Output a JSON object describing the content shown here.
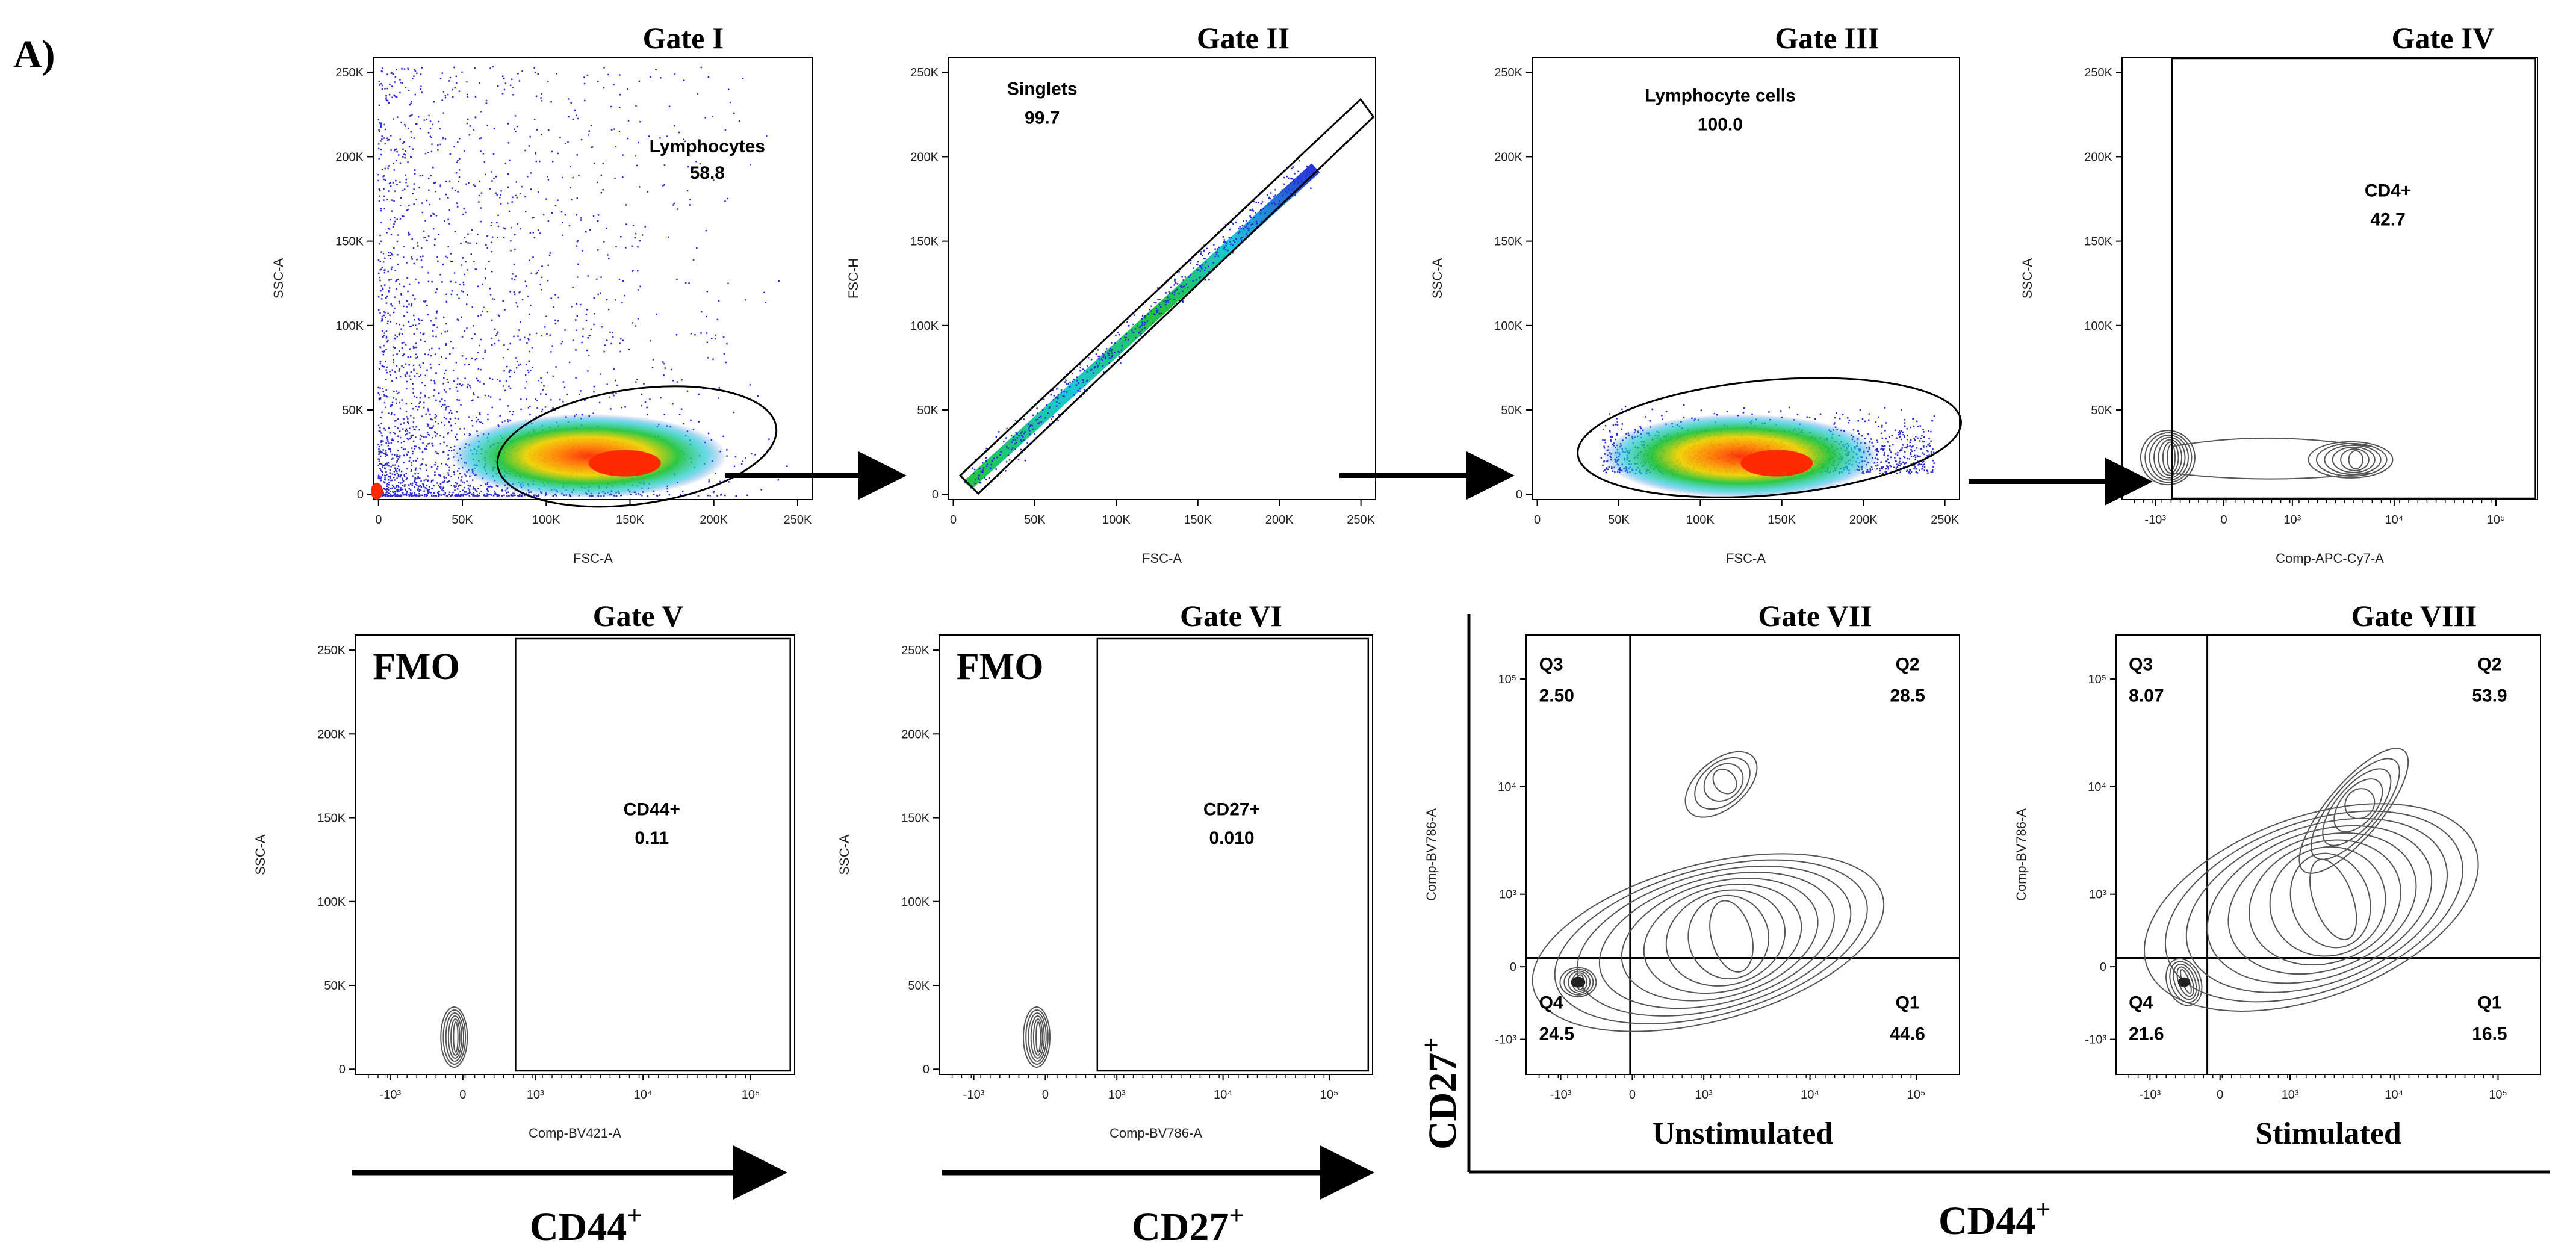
{
  "figure": {
    "panel_label": "A)",
    "bottom_arrow_labels": {
      "cd44_left": "CD44",
      "cd27_mid": "CD27",
      "cd44_right": "CD44",
      "cd27_vertical": "CD27",
      "superscript": "+"
    }
  },
  "chart_data": [
    {
      "id": "gate1",
      "type": "scatter",
      "title": "Gate I",
      "xlabel": "FSC-A",
      "ylabel": "SSC-A",
      "x_ticks": [
        "0",
        "50K",
        "100K",
        "150K",
        "200K",
        "250K"
      ],
      "y_ticks": [
        "0",
        "50K",
        "100K",
        "150K",
        "200K",
        "250K"
      ],
      "xlim": [
        0,
        262144
      ],
      "ylim": [
        0,
        262144
      ],
      "gate": {
        "name": "Lymphocytes",
        "value": "58.8",
        "shape": "ellipse"
      },
      "density_center": [
        150000,
        18000
      ]
    },
    {
      "id": "gate2",
      "type": "scatter",
      "title": "Gate II",
      "xlabel": "FSC-A",
      "ylabel": "FSC-H",
      "x_ticks": [
        "0",
        "50K",
        "100K",
        "150K",
        "200K",
        "250K"
      ],
      "y_ticks": [
        "0",
        "50K",
        "100K",
        "150K",
        "200K",
        "250K"
      ],
      "xlim": [
        0,
        262144
      ],
      "ylim": [
        0,
        262144
      ],
      "gate": {
        "name": "Singlets",
        "value": "99.7",
        "shape": "polygon"
      }
    },
    {
      "id": "gate3",
      "type": "scatter",
      "title": "Gate III",
      "xlabel": "FSC-A",
      "ylabel": "SSC-A",
      "x_ticks": [
        "0",
        "50K",
        "100K",
        "150K",
        "200K",
        "250K"
      ],
      "y_ticks": [
        "0",
        "50K",
        "100K",
        "150K",
        "200K",
        "250K"
      ],
      "xlim": [
        0,
        262144
      ],
      "ylim": [
        0,
        262144
      ],
      "gate": {
        "name": "Lymphocyte cells",
        "value": "100.0",
        "shape": "ellipse"
      },
      "density_center": [
        150000,
        18000
      ]
    },
    {
      "id": "gate4",
      "type": "contour",
      "title": "Gate IV",
      "xlabel": "Comp-APC-Cy7-A",
      "ylabel": "SSC-A",
      "x_ticks": [
        "-10^3",
        "0",
        "10^3",
        "10^4",
        "10^5"
      ],
      "y_ticks": [
        "0",
        "50K",
        "100K",
        "150K",
        "200K",
        "250K"
      ],
      "gate": {
        "name": "CD4+",
        "value": "42.7",
        "shape": "rectangle"
      }
    },
    {
      "id": "gate5",
      "type": "contour",
      "title": "Gate V",
      "xlabel": "Comp-BV421-A",
      "ylabel": "SSC-A",
      "annotation": "FMO",
      "x_ticks": [
        "-10^3",
        "0",
        "10^3",
        "10^4",
        "10^5"
      ],
      "y_ticks": [
        "0",
        "50K",
        "100K",
        "150K",
        "200K",
        "250K"
      ],
      "gate": {
        "name": "CD44+",
        "value": "0.11",
        "shape": "rectangle"
      }
    },
    {
      "id": "gate6",
      "type": "contour",
      "title": "Gate VI",
      "xlabel": "Comp-BV786-A",
      "ylabel": "SSC-A",
      "annotation": "FMO",
      "x_ticks": [
        "-10^3",
        "0",
        "10^3",
        "10^4",
        "10^5"
      ],
      "y_ticks": [
        "0",
        "50K",
        "100K",
        "150K",
        "200K",
        "250K"
      ],
      "gate": {
        "name": "CD27+",
        "value": "0.010",
        "shape": "rectangle"
      }
    },
    {
      "id": "gate7",
      "type": "contour",
      "title": "Gate VII",
      "xlabel": "Unstimulated",
      "ylabel": "Comp-BV786-A",
      "x_ticks": [
        "-10^3",
        "0",
        "10^3",
        "10^4",
        "10^5"
      ],
      "y_ticks": [
        "-10^3",
        "0",
        "10^3",
        "10^4",
        "10^5"
      ],
      "quadrants": [
        {
          "name": "Q3",
          "value": "2.50"
        },
        {
          "name": "Q2",
          "value": "28.5"
        },
        {
          "name": "Q4",
          "value": "24.5"
        },
        {
          "name": "Q1",
          "value": "44.6"
        }
      ]
    },
    {
      "id": "gate8",
      "type": "contour",
      "title": "Gate VIII",
      "xlabel": "Stimulated",
      "ylabel": "Comp-BV786-A",
      "x_ticks": [
        "-10^3",
        "0",
        "10^3",
        "10^4",
        "10^5"
      ],
      "y_ticks": [
        "-10^3",
        "0",
        "10^3",
        "10^4",
        "10^5"
      ],
      "quadrants": [
        {
          "name": "Q3",
          "value": "8.07"
        },
        {
          "name": "Q2",
          "value": "53.9"
        },
        {
          "name": "Q4",
          "value": "21.6"
        },
        {
          "name": "Q1",
          "value": "16.5"
        }
      ]
    }
  ],
  "colors": {
    "dots": "#2b2bd6",
    "density_hot": "#ff2a00",
    "density_mid": "#f0d000",
    "density_green": "#22c43a",
    "density_cyan": "#1cc8d8",
    "contour": "#555555",
    "axis": "#000000"
  }
}
